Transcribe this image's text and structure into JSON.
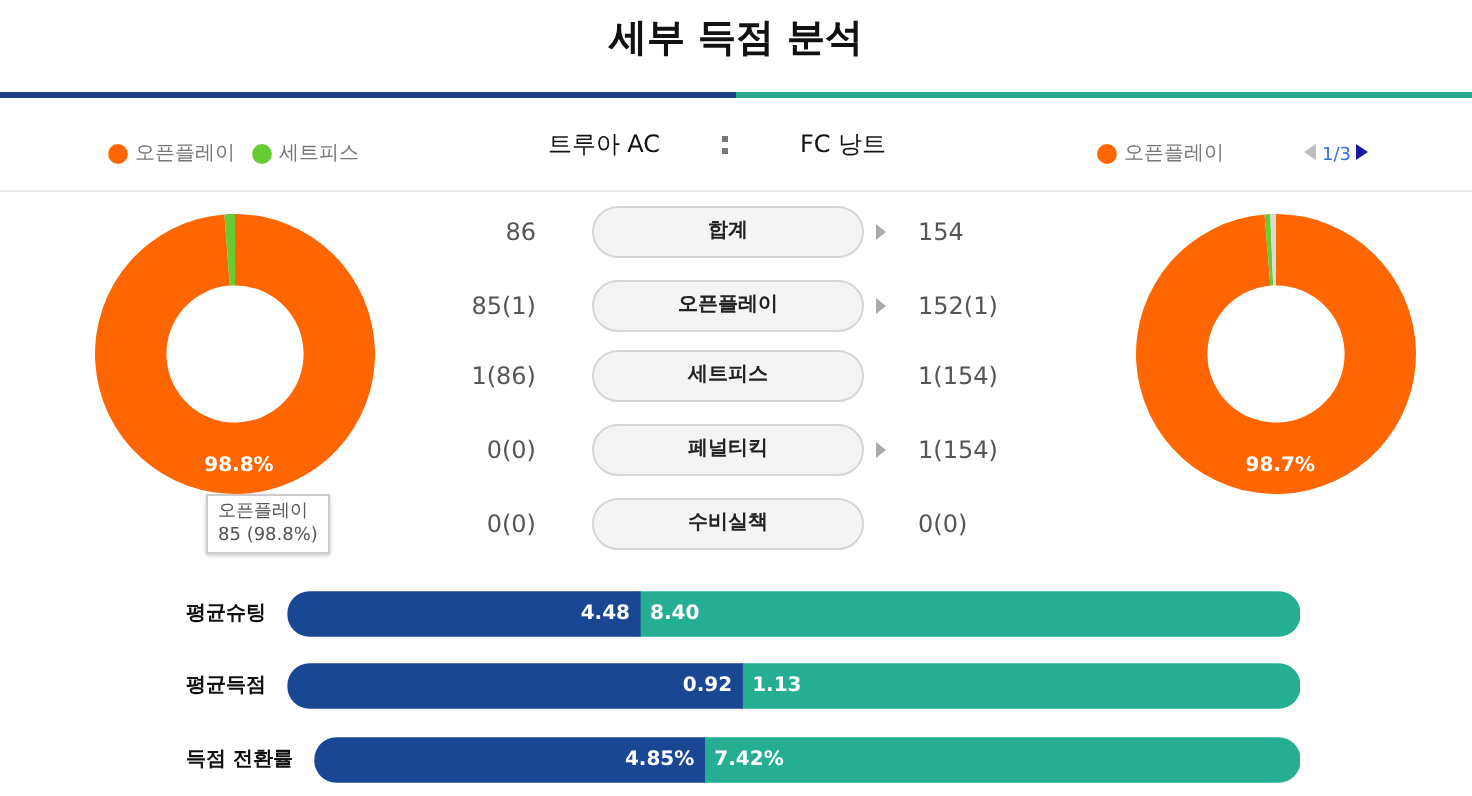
{
  "chart_data": [
    {
      "type": "donut",
      "categories": [
        "오픈플레이",
        "세트피스"
      ],
      "values": [
        98.8,
        1.2
      ],
      "colors": [
        "#ff6600",
        "#66cc33"
      ],
      "value_labels": [
        "98.8%",
        null
      ],
      "legend": "top",
      "annotations": [
        "오픈플레이\n85 (98.8%)"
      ]
    },
    {
      "type": "other",
      "title": "세부 득점 분석",
      "annotations": [
        "트루아 AC",
        "FC 낭트",
        "86",
        "합계",
        "154",
        "85(1)",
        "오픈플레이",
        "152(1)",
        "1(86)",
        "세트피스",
        "1(154)",
        "0(0)",
        "페널티킥",
        "1(154)",
        "0(0)",
        "수비실책",
        "0(0)"
      ]
    },
    {
      "type": "donut",
      "categories": [
        "오픈플레이",
        null,
        null
      ],
      "values": [
        98.7,
        0.65,
        0.65
      ],
      "colors": [
        "#ff6600",
        "#66cc33",
        "#d9d9d9"
      ],
      "value_labels": [
        "98.7%",
        null,
        null
      ],
      "legend": "top left",
      "annotations": [
        "1/3"
      ]
    },
    {
      "type": "bar",
      "orientation": "horizontal",
      "stacked": true,
      "categories": [
        "평균슈팅"
      ],
      "tick_labels": "y",
      "series": [
        {
          "color": "#1a4793",
          "values": [
            4.48
          ],
          "value_labels": [
            "4.48"
          ]
        },
        {
          "color": "#26ae93",
          "values": [
            8.4
          ],
          "value_labels": [
            "8.40"
          ]
        }
      ]
    },
    {
      "type": "bar",
      "orientation": "horizontal",
      "stacked": true,
      "categories": [
        "평균득점"
      ],
      "tick_labels": "y",
      "series": [
        {
          "color": "#1a4793",
          "values": [
            0.92
          ],
          "value_labels": [
            "0.92"
          ]
        },
        {
          "color": "#26ae93",
          "values": [
            1.13
          ],
          "value_labels": [
            "1.13"
          ]
        }
      ]
    },
    {
      "type": "bar",
      "orientation": "horizontal",
      "stacked": true,
      "categories": [
        "득점 전환률"
      ],
      "tick_labels": "y",
      "series": [
        {
          "color": "#1a4793",
          "values": [
            4.85
          ],
          "value_labels": [
            "4.85%"
          ]
        },
        {
          "color": "#26ae93",
          "values": [
            7.42
          ],
          "value_labels": [
            "7.42%"
          ]
        }
      ]
    }
  ]
}
